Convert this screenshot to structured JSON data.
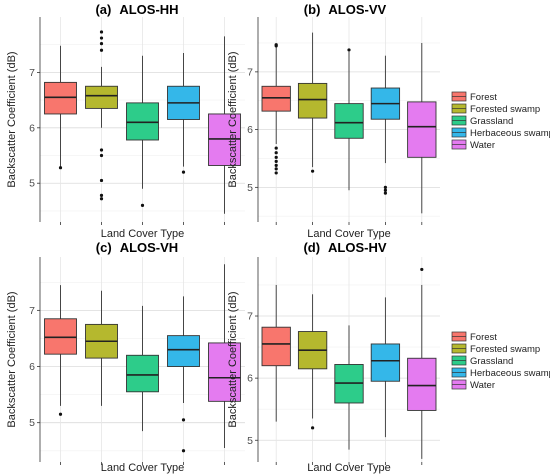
{
  "legend_entries": [
    {
      "label": "Forest",
      "color": "#f8766d"
    },
    {
      "label": "Forested swamp",
      "color": "#b5b82e"
    },
    {
      "label": "Grassland",
      "color": "#2dcc8a"
    },
    {
      "label": "Herbaceous swamp",
      "color": "#34b7e9"
    },
    {
      "label": "Water",
      "color": "#e47bf0"
    }
  ],
  "chart_data": [
    {
      "type": "box",
      "tag": "(a)",
      "title": "ALOS-HH",
      "xlabel": "Land Cover Type",
      "ylabel": "Backscatter Coefficient (dB)",
      "ylim": [
        4.3,
        8.0
      ],
      "yticks": [
        5,
        6,
        7
      ],
      "grid": true,
      "legend": "none",
      "categories": [
        "Forest",
        "Forested swamp",
        "Grassland",
        "Herbaceous swamp",
        "Water"
      ],
      "boxes": [
        {
          "min": 5.3,
          "q1": 6.25,
          "median": 6.55,
          "q3": 6.82,
          "max": 7.48,
          "outliers": [
            5.28
          ]
        },
        {
          "min": 6.0,
          "q1": 6.35,
          "median": 6.58,
          "q3": 6.75,
          "max": 7.1,
          "outliers": [
            7.73,
            7.62,
            7.52,
            7.4,
            5.6,
            5.5,
            5.05,
            4.78,
            4.72
          ]
        },
        {
          "min": 4.9,
          "q1": 5.78,
          "median": 6.1,
          "q3": 6.45,
          "max": 7.3,
          "outliers": [
            4.6
          ]
        },
        {
          "min": 5.3,
          "q1": 6.15,
          "median": 6.45,
          "q3": 6.75,
          "max": 7.35,
          "outliers": [
            5.2
          ]
        },
        {
          "min": 4.45,
          "q1": 5.32,
          "median": 5.8,
          "q3": 6.25,
          "max": 7.65,
          "outliers": []
        }
      ]
    },
    {
      "type": "box",
      "tag": "(b)",
      "title": "ALOS-VV",
      "xlabel": "Land Cover Type",
      "ylabel": "Backscatter Coefficient (dB)",
      "ylim": [
        4.4,
        7.95
      ],
      "yticks": [
        5,
        6,
        7
      ],
      "grid": true,
      "legend": "right",
      "categories": [
        "Forest",
        "Forested swamp",
        "Grassland",
        "Herbaceous swamp",
        "Water"
      ],
      "boxes": [
        {
          "min": 5.75,
          "q1": 6.32,
          "median": 6.55,
          "q3": 6.75,
          "max": 7.45,
          "outliers": [
            7.47,
            7.45,
            5.68,
            5.6,
            5.52,
            5.45,
            5.38,
            5.32,
            5.25
          ]
        },
        {
          "min": 5.35,
          "q1": 6.2,
          "median": 6.52,
          "q3": 6.8,
          "max": 7.68,
          "outliers": [
            5.28
          ]
        },
        {
          "min": 4.95,
          "q1": 5.85,
          "median": 6.12,
          "q3": 6.45,
          "max": 7.35,
          "outliers": [
            7.38
          ]
        },
        {
          "min": 5.42,
          "q1": 6.18,
          "median": 6.45,
          "q3": 6.72,
          "max": 7.28,
          "outliers": [
            5.0,
            4.95,
            4.9
          ]
        },
        {
          "min": 4.55,
          "q1": 5.52,
          "median": 6.05,
          "q3": 6.48,
          "max": 7.5,
          "outliers": []
        }
      ]
    },
    {
      "type": "box",
      "tag": "(c)",
      "title": "ALOS-VH",
      "xlabel": "Land Cover Type",
      "ylabel": "Backscatter Coefficient (dB)",
      "ylim": [
        4.3,
        7.95
      ],
      "yticks": [
        5,
        6,
        7
      ],
      "grid": true,
      "legend": "none",
      "categories": [
        "Forest",
        "Forested swamp",
        "Grassland",
        "Herbaceous swamp",
        "Water"
      ],
      "boxes": [
        {
          "min": 5.3,
          "q1": 6.22,
          "median": 6.52,
          "q3": 6.85,
          "max": 7.45,
          "outliers": [
            5.15
          ]
        },
        {
          "min": 5.3,
          "q1": 6.15,
          "median": 6.45,
          "q3": 6.75,
          "max": 7.35,
          "outliers": []
        },
        {
          "min": 4.85,
          "q1": 5.55,
          "median": 5.85,
          "q3": 6.2,
          "max": 7.08,
          "outliers": []
        },
        {
          "min": 5.35,
          "q1": 6.0,
          "median": 6.3,
          "q3": 6.55,
          "max": 7.25,
          "outliers": [
            5.05,
            4.5
          ]
        },
        {
          "min": 4.55,
          "q1": 5.38,
          "median": 5.8,
          "q3": 6.42,
          "max": 7.82,
          "outliers": []
        }
      ]
    },
    {
      "type": "box",
      "tag": "(d)",
      "title": "ALOS-HV",
      "xlabel": "Land Cover Type",
      "ylabel": "Backscatter Coefficient (dB)",
      "ylim": [
        4.65,
        7.95
      ],
      "yticks": [
        5,
        6,
        7
      ],
      "grid": true,
      "legend": "right",
      "categories": [
        "Forest",
        "Forested swamp",
        "Grassland",
        "Herbaceous swamp",
        "Water"
      ],
      "boxes": [
        {
          "min": 5.3,
          "q1": 6.2,
          "median": 6.55,
          "q3": 6.82,
          "max": 7.5,
          "outliers": []
        },
        {
          "min": 5.35,
          "q1": 6.15,
          "median": 6.45,
          "q3": 6.75,
          "max": 7.35,
          "outliers": [
            5.2
          ]
        },
        {
          "min": 4.85,
          "q1": 5.6,
          "median": 5.92,
          "q3": 6.22,
          "max": 6.85,
          "outliers": []
        },
        {
          "min": 5.05,
          "q1": 5.95,
          "median": 6.28,
          "q3": 6.55,
          "max": 7.3,
          "outliers": []
        },
        {
          "min": 4.7,
          "q1": 5.48,
          "median": 5.88,
          "q3": 6.32,
          "max": 7.5,
          "outliers": [
            7.75
          ]
        }
      ]
    }
  ]
}
